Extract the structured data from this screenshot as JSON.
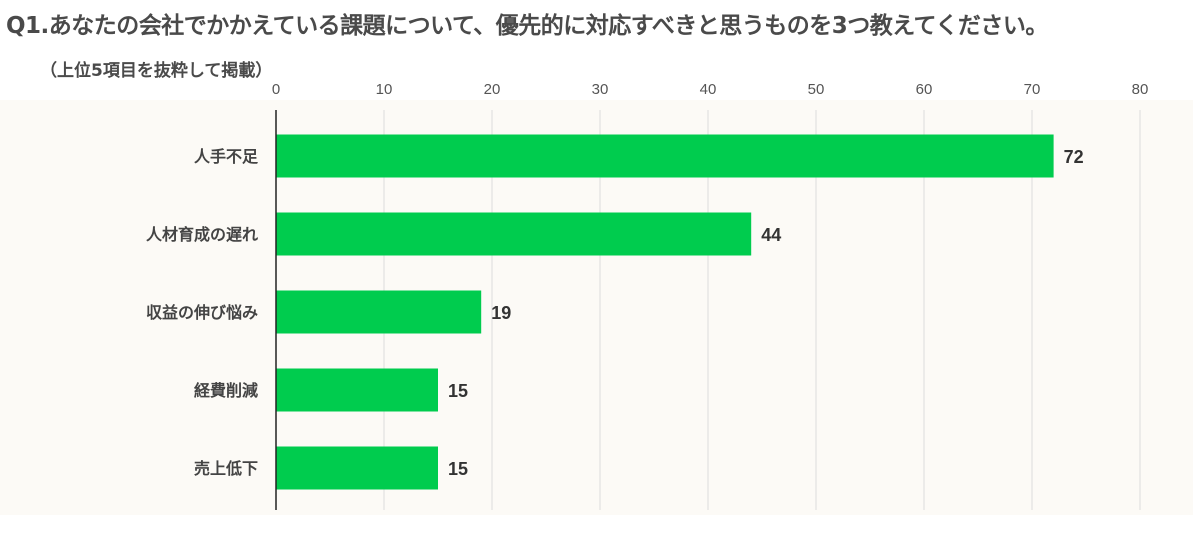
{
  "title": "Q1.あなたの会社でかかえている課題について、優先的に対応すべきと思うものを3つ教えてください。",
  "subtitle": "（上位5項目を抜粋して掲載）",
  "colors": {
    "bar": "#00cc4e",
    "grid": "#dcdcdc",
    "axis": "#222222"
  },
  "chart_data": {
    "type": "bar",
    "orientation": "horizontal",
    "categories": [
      "人手不足",
      "人材育成の遅れ",
      "収益の伸び悩み",
      "経費削減",
      "売上低下"
    ],
    "values": [
      72,
      44,
      19,
      15,
      15
    ],
    "xlim": [
      0,
      80
    ],
    "x_ticks": [
      0,
      10,
      20,
      30,
      40,
      50,
      60,
      70,
      80
    ],
    "x_axis_position": "top",
    "grid": true,
    "legend": "none"
  }
}
